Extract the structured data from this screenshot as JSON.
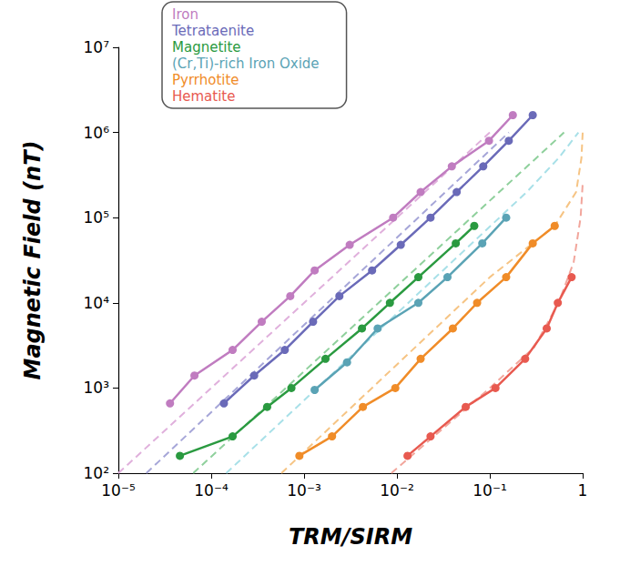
{
  "chart_data": {
    "type": "line",
    "x_label": "TRM/SIRM",
    "y_label": "Magnetic Field (nT)",
    "log": true,
    "grid": false,
    "legend": "upper left",
    "xlim": [
      1e-05,
      1
    ],
    "ylim": [
      100,
      10000000
    ],
    "xticks": [
      {
        "value": 1e-05,
        "label": "10⁻⁵"
      },
      {
        "value": 0.0001,
        "label": "10⁻⁴"
      },
      {
        "value": 0.001,
        "label": "10⁻³"
      },
      {
        "value": 0.01,
        "label": "10⁻²"
      },
      {
        "value": 0.1,
        "label": "10⁻¹"
      },
      1
    ],
    "yticks": [
      {
        "value": 100,
        "label": "10²"
      },
      {
        "value": 1000,
        "label": "10³"
      },
      {
        "value": 10000,
        "label": "10⁴"
      },
      {
        "value": 100000,
        "label": "10⁵"
      },
      {
        "value": 1000000,
        "label": "10⁶"
      },
      {
        "value": 10000000,
        "label": "10⁷"
      }
    ],
    "series": [
      {
        "name": "Iron",
        "color": "#c07cc0",
        "marker": "circle",
        "line_style": "solid",
        "x": [
          3.6e-05,
          6.6e-05,
          0.00017,
          0.00035,
          0.00071,
          0.0013,
          0.0031,
          0.0091,
          0.018,
          0.039,
          0.098,
          0.177
        ],
        "values": [
          660,
          1400,
          2800,
          6000,
          12000,
          24000,
          48000,
          100000,
          200000,
          400000,
          800000,
          1600000
        ]
      },
      {
        "name": "Tetrataenite",
        "color": "#6a6ab8",
        "marker": "circle",
        "line_style": "solid",
        "x": [
          0.000137,
          0.00029,
          0.00062,
          0.00125,
          0.0024,
          0.0054,
          0.011,
          0.023,
          0.044,
          0.085,
          0.16,
          0.29
        ],
        "values": [
          660,
          1400,
          2800,
          6000,
          12000,
          24000,
          48000,
          100000,
          200000,
          400000,
          800000,
          1600000
        ]
      },
      {
        "name": "Magnetite",
        "color": "#2a9a40",
        "marker": "circle",
        "line_style": "solid",
        "x": [
          4.6e-05,
          0.00017,
          0.0004,
          0.00073,
          0.0017,
          0.0042,
          0.0084,
          0.017,
          0.043,
          0.068
        ],
        "values": [
          160,
          270,
          600,
          1000,
          2200,
          5000,
          10000,
          20000,
          50000,
          80000
        ]
      },
      {
        "name": "(Cr,Ti)-rich Iron Oxide",
        "color": "#5aa3b5",
        "marker": "circle",
        "line_style": "solid",
        "x": [
          0.0013,
          0.0029,
          0.0062,
          0.017,
          0.035,
          0.083,
          0.15
        ],
        "values": [
          950,
          2000,
          5000,
          10000,
          20000,
          50000,
          100000
        ]
      },
      {
        "name": "Pyrrhotite",
        "color": "#f08c28",
        "marker": "circle",
        "line_style": "solid",
        "x": [
          0.00089,
          0.002,
          0.0043,
          0.0096,
          0.018,
          0.04,
          0.073,
          0.15,
          0.29,
          0.5
        ],
        "values": [
          160,
          270,
          600,
          1000,
          2200,
          5000,
          10000,
          20000,
          50000,
          80000
        ]
      },
      {
        "name": "Hematite",
        "color": "#e85a50",
        "marker": "circle",
        "line_style": "solid",
        "x": [
          0.013,
          0.023,
          0.055,
          0.115,
          0.24,
          0.41,
          0.54,
          0.76
        ],
        "values": [
          160,
          270,
          600,
          1000,
          2200,
          5000,
          10000,
          20000
        ]
      },
      {
        "name": "Iron",
        "color": "#e0b0dc",
        "marker": "none",
        "line_style": "dashed",
        "x": [
          1e-05,
          0.1
        ],
        "values": [
          100,
          1000000
        ]
      },
      {
        "name": "Tetrataenite",
        "color": "#a6a6d8",
        "marker": "none",
        "line_style": "dashed",
        "x": [
          2e-05,
          0.16
        ],
        "values": [
          100,
          1000000
        ]
      },
      {
        "name": "Magnetite",
        "color": "#8fd09c",
        "marker": "none",
        "line_style": "dashed",
        "x": [
          6.4e-05,
          0.63
        ],
        "values": [
          100,
          1000000
        ]
      },
      {
        "name": "(Cr,Ti)-rich Iron Oxide",
        "color": "#a8e0e8",
        "marker": "none",
        "line_style": "dashed",
        "x": [
          0.000145,
          0.25,
          0.55,
          0.9
        ],
        "values": [
          100,
          200000,
          500000,
          1000000
        ]
      },
      {
        "name": "Pyrrhotite",
        "color": "#f6c484",
        "marker": "none",
        "line_style": "dashed",
        "x": [
          0.00057,
          0.1,
          0.5,
          0.85,
          0.97,
          1
        ],
        "values": [
          100,
          20000,
          80000,
          200000,
          500000,
          1000000
        ]
      },
      {
        "name": "Hematite",
        "color": "#f2a69c",
        "marker": "none",
        "line_style": "dashed",
        "x": [
          0.0087,
          0.1,
          0.3,
          0.55,
          0.8,
          0.95,
          1
        ],
        "values": [
          100,
          1000,
          3000,
          10000,
          30000,
          100000,
          250000
        ]
      }
    ]
  }
}
